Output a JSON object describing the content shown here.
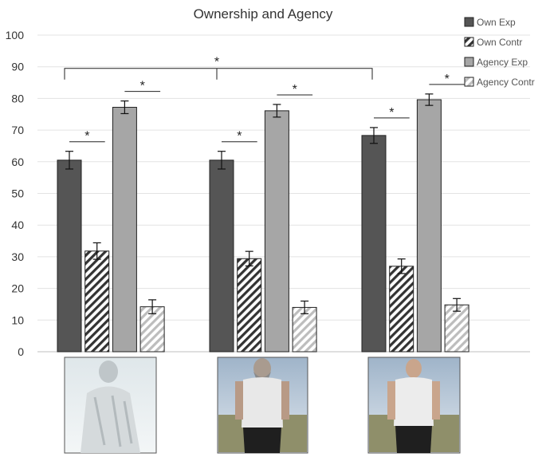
{
  "chart_data": {
    "type": "bar",
    "title": "Ownership and Agency",
    "xlabel": "",
    "ylabel": "",
    "ylim": [
      0,
      100
    ],
    "yticks": [
      0,
      10,
      20,
      30,
      40,
      50,
      60,
      70,
      80,
      90,
      100
    ],
    "grid": true,
    "legend_position": "top-right",
    "groups": 3,
    "series": [
      {
        "name": "Own Exp",
        "values": [
          60.5,
          60.5,
          68.3
        ],
        "errors": [
          2.8,
          2.8,
          2.5
        ],
        "style": "solid",
        "color": "#555555"
      },
      {
        "name": "Own Contr",
        "values": [
          31.8,
          29.4,
          27.0
        ],
        "errors": [
          2.6,
          2.3,
          2.3
        ],
        "style": "hatch",
        "color": "#333333"
      },
      {
        "name": "Agency Exp",
        "values": [
          77.2,
          76.1,
          79.6
        ],
        "errors": [
          2.0,
          2.0,
          1.8
        ],
        "style": "solid",
        "color": "#a6a6a6"
      },
      {
        "name": "Agency Contr",
        "values": [
          14.2,
          14.0,
          14.8
        ],
        "errors": [
          2.2,
          2.0,
          2.0
        ],
        "style": "hatch",
        "color": "#bfbfbf"
      }
    ],
    "annotations": {
      "significance_marker": "*",
      "pairwise": [
        {
          "group": 0,
          "pair": "ownership"
        },
        {
          "group": 0,
          "pair": "agency"
        },
        {
          "group": 1,
          "pair": "ownership"
        },
        {
          "group": 1,
          "pair": "agency"
        },
        {
          "group": 2,
          "pair": "ownership"
        },
        {
          "group": 2,
          "pair": "agency"
        }
      ],
      "bracket": {
        "groups": [
          0,
          1,
          2
        ],
        "level": 90
      }
    }
  },
  "images": [
    {
      "icon": "avatar-robed-statue-icon"
    },
    {
      "icon": "avatar-bearded-man-tank-top-icon"
    },
    {
      "icon": "avatar-young-man-tank-top-icon"
    }
  ]
}
